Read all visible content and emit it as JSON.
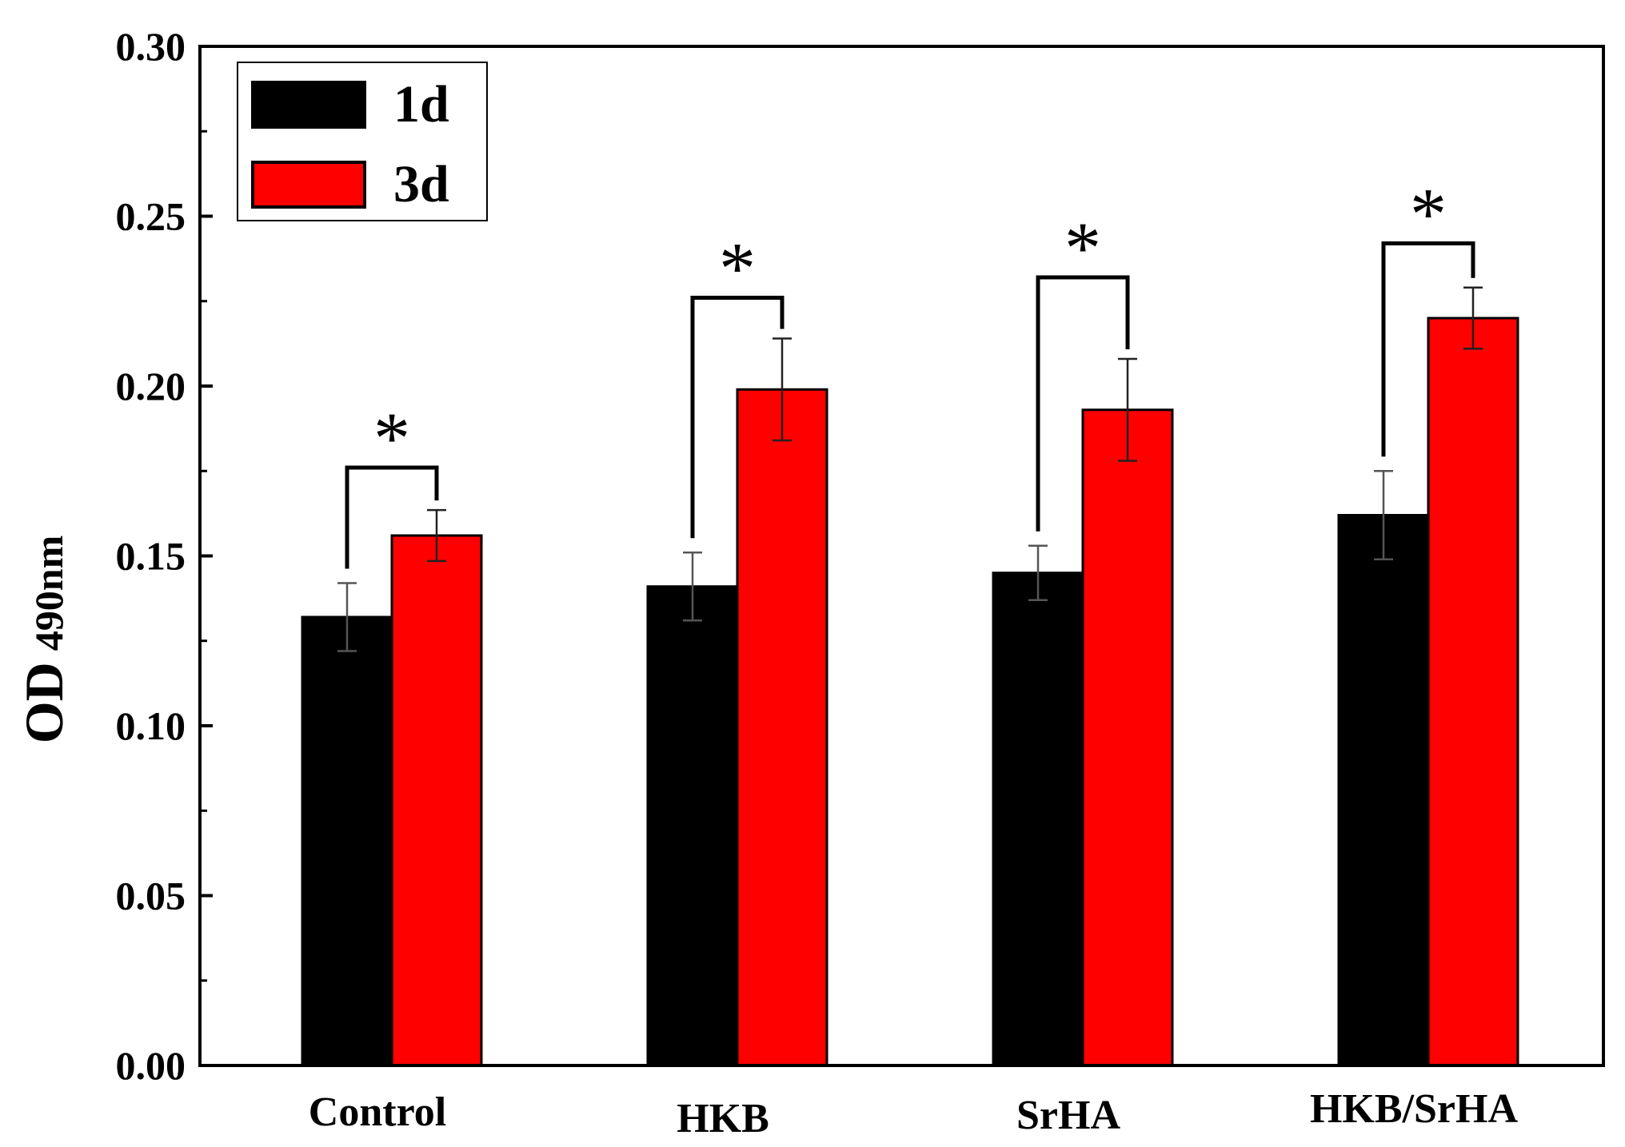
{
  "chart_data": {
    "type": "bar",
    "title": "",
    "xlabel": "",
    "ylabel": "OD",
    "ylabel_sub": "490nm",
    "ylim": [
      0.0,
      0.3
    ],
    "yticks": [
      0.0,
      0.05,
      0.1,
      0.15,
      0.2,
      0.25,
      0.3
    ],
    "ytick_labels": [
      "0.00",
      "0.05",
      "0.10",
      "0.15",
      "0.20",
      "0.25",
      "0.30"
    ],
    "categories": [
      "Control",
      "HKB",
      "SrHA",
      "HKB/SrHA"
    ],
    "series": [
      {
        "name": "1d",
        "color": "#000000",
        "values": [
          0.132,
          0.141,
          0.145,
          0.162
        ],
        "errors": [
          0.01,
          0.01,
          0.008,
          0.013
        ]
      },
      {
        "name": "3d",
        "color": "#ff0000",
        "values": [
          0.156,
          0.199,
          0.193,
          0.22
        ],
        "errors": [
          0.0075,
          0.015,
          0.015,
          0.009
        ]
      }
    ],
    "significance": [
      {
        "category": "Control",
        "label": "*",
        "bracket_top": 0.176
      },
      {
        "category": "HKB",
        "label": "*",
        "bracket_top": 0.226
      },
      {
        "category": "SrHA",
        "label": "*",
        "bracket_top": 0.232
      },
      {
        "category": "HKB/SrHA",
        "label": "*",
        "bracket_top": 0.242
      }
    ],
    "legend": {
      "position": "top-left",
      "entries": [
        "1d",
        "3d"
      ]
    },
    "grid": false
  }
}
